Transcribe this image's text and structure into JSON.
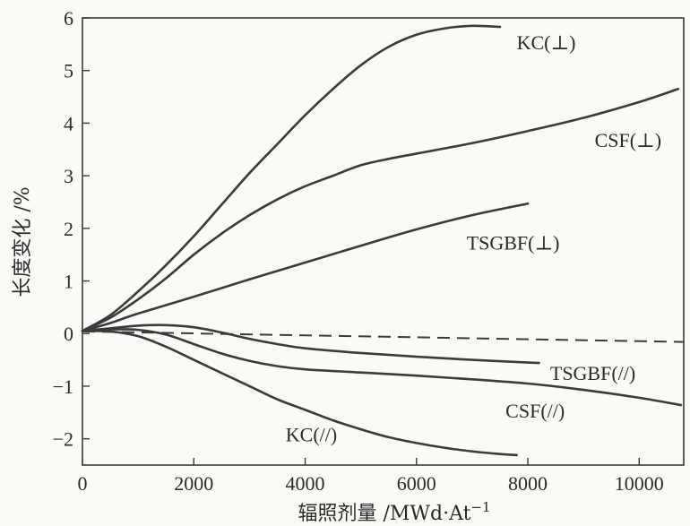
{
  "chart_data": {
    "type": "line",
    "xlabel": "辐照剂量 /MWd·At",
    "xlabel_sup": "−1",
    "ylabel": "长度变化 /%",
    "xlim": [
      0,
      10800
    ],
    "ylim": [
      -2.5,
      6
    ],
    "xticks": [
      0,
      2000,
      4000,
      6000,
      8000,
      10000
    ],
    "xtick_labels": [
      "0",
      "2000",
      "4000",
      "6000",
      "8000",
      "10000"
    ],
    "yticks": [
      -2,
      -1,
      0,
      1,
      2,
      3,
      4,
      5,
      6
    ],
    "ytick_labels": [
      "−2",
      "−1",
      "0",
      "1",
      "2",
      "3",
      "4",
      "5",
      "6"
    ],
    "grid": false,
    "series": [
      {
        "name": "KC(⊥)",
        "style": "solid",
        "points": [
          [
            0,
            0.05
          ],
          [
            500,
            0.35
          ],
          [
            1000,
            0.8
          ],
          [
            1500,
            1.3
          ],
          [
            2000,
            1.85
          ],
          [
            2500,
            2.45
          ],
          [
            3000,
            3.05
          ],
          [
            3500,
            3.6
          ],
          [
            4000,
            4.15
          ],
          [
            4500,
            4.65
          ],
          [
            5000,
            5.1
          ],
          [
            5500,
            5.45
          ],
          [
            6000,
            5.68
          ],
          [
            6500,
            5.8
          ],
          [
            7000,
            5.85
          ],
          [
            7500,
            5.83
          ]
        ]
      },
      {
        "name": "CSF(⊥)",
        "style": "solid",
        "points": [
          [
            0,
            0.05
          ],
          [
            500,
            0.3
          ],
          [
            1000,
            0.65
          ],
          [
            1500,
            1.05
          ],
          [
            2000,
            1.5
          ],
          [
            2500,
            1.9
          ],
          [
            3000,
            2.25
          ],
          [
            3500,
            2.55
          ],
          [
            4000,
            2.8
          ],
          [
            4500,
            3.0
          ],
          [
            5000,
            3.2
          ],
          [
            5500,
            3.32
          ],
          [
            6000,
            3.42
          ],
          [
            7000,
            3.62
          ],
          [
            8000,
            3.85
          ],
          [
            9000,
            4.1
          ],
          [
            10000,
            4.4
          ],
          [
            10700,
            4.65
          ]
        ]
      },
      {
        "name": "TSGBF(⊥)",
        "style": "solid",
        "points": [
          [
            0,
            0.05
          ],
          [
            500,
            0.2
          ],
          [
            1000,
            0.38
          ],
          [
            2000,
            0.7
          ],
          [
            3000,
            1.03
          ],
          [
            4000,
            1.35
          ],
          [
            5000,
            1.67
          ],
          [
            6000,
            1.98
          ],
          [
            7000,
            2.25
          ],
          [
            8000,
            2.47
          ]
        ]
      },
      {
        "name": "TSGBF(//)",
        "style": "solid",
        "points": [
          [
            0,
            0.05
          ],
          [
            500,
            0.1
          ],
          [
            1000,
            0.15
          ],
          [
            1500,
            0.16
          ],
          [
            2000,
            0.12
          ],
          [
            2500,
            0.02
          ],
          [
            3000,
            -0.1
          ],
          [
            3500,
            -0.2
          ],
          [
            4000,
            -0.28
          ],
          [
            5000,
            -0.37
          ],
          [
            6000,
            -0.44
          ],
          [
            7000,
            -0.5
          ],
          [
            8000,
            -0.55
          ],
          [
            8200,
            -0.56
          ]
        ]
      },
      {
        "name": "CSF(//)",
        "style": "solid",
        "points": [
          [
            0,
            0.05
          ],
          [
            500,
            0.08
          ],
          [
            1000,
            0.07
          ],
          [
            1500,
            -0.02
          ],
          [
            2000,
            -0.2
          ],
          [
            2500,
            -0.38
          ],
          [
            3000,
            -0.52
          ],
          [
            3500,
            -0.62
          ],
          [
            4000,
            -0.68
          ],
          [
            5000,
            -0.74
          ],
          [
            6000,
            -0.8
          ],
          [
            7000,
            -0.87
          ],
          [
            8000,
            -0.95
          ],
          [
            9000,
            -1.07
          ],
          [
            10000,
            -1.22
          ],
          [
            10750,
            -1.36
          ]
        ]
      },
      {
        "name": "KC(//)",
        "style": "solid",
        "points": [
          [
            0,
            0.05
          ],
          [
            500,
            0.04
          ],
          [
            1000,
            -0.05
          ],
          [
            1500,
            -0.25
          ],
          [
            2000,
            -0.5
          ],
          [
            2500,
            -0.75
          ],
          [
            3000,
            -1.0
          ],
          [
            3500,
            -1.25
          ],
          [
            4000,
            -1.45
          ],
          [
            4500,
            -1.65
          ],
          [
            5000,
            -1.82
          ],
          [
            5500,
            -1.97
          ],
          [
            6000,
            -2.08
          ],
          [
            6500,
            -2.17
          ],
          [
            7000,
            -2.24
          ],
          [
            7500,
            -2.29
          ],
          [
            7800,
            -2.31
          ]
        ]
      },
      {
        "name": "",
        "style": "dashed",
        "points": [
          [
            0,
            0.04
          ],
          [
            10800,
            -0.16
          ]
        ]
      }
    ],
    "annotations": [
      {
        "text": "KC(⊥)",
        "x": 7800,
        "y": 5.4
      },
      {
        "text": "CSF(⊥)",
        "x": 9200,
        "y": 3.55
      },
      {
        "text": "TSGBF(⊥)",
        "x": 6900,
        "y": 1.6
      },
      {
        "text": "TSGBF(//)",
        "x": 8400,
        "y": -0.88
      },
      {
        "text": "CSF(//)",
        "x": 7600,
        "y": -1.6
      },
      {
        "text": "KC(//)",
        "x": 3650,
        "y": -2.05
      }
    ]
  }
}
